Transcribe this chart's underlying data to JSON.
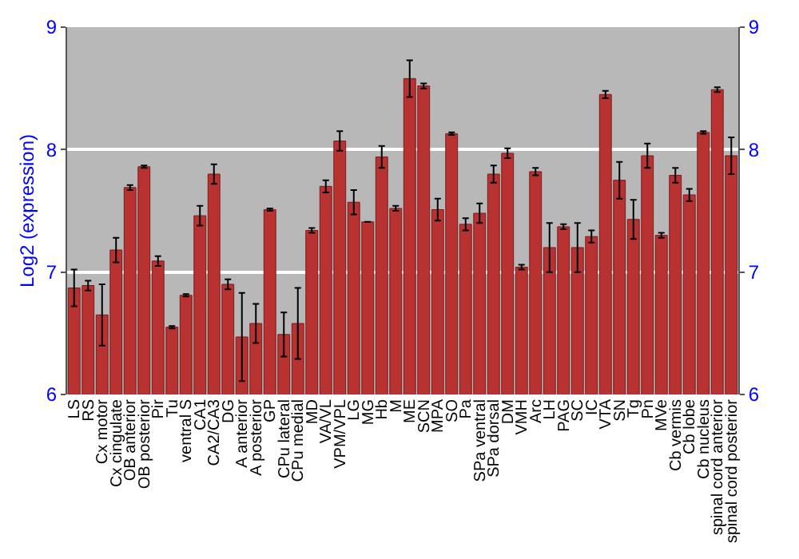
{
  "chart_data": {
    "type": "bar",
    "ylabel": "Log2 (expression)",
    "categories": [
      "LS",
      "RS",
      "Cx motor",
      "Cx cingulate",
      "OB anterior",
      "OB posterior",
      "Pir",
      "Tu",
      "ventral S",
      "CA1",
      "CA2/CA3",
      "DG",
      "A anterior",
      "A posterior",
      "GP",
      "CPu lateral",
      "CPu medial",
      "MD",
      "VA/VL",
      "VPM/VPL",
      "LG",
      "MG",
      "Hb",
      "M",
      "ME",
      "SCN",
      "MPA",
      "SO",
      "Pa",
      "SPa ventral",
      "SPa dorsal",
      "DM",
      "VMH",
      "Arc",
      "LH",
      "PAG",
      "SC",
      "IC",
      "VTA",
      "SN",
      "Tg",
      "Pn",
      "MVe",
      "Cb vermis",
      "Cb lobe",
      "Cb nucleus",
      "spinal cord anterior",
      "spinal cord posterior"
    ],
    "series": [
      {
        "color": "#b83232",
        "values": [
          6.87,
          6.89,
          6.65,
          7.18,
          7.69,
          7.86,
          7.09,
          6.55,
          6.81,
          7.46,
          7.8,
          6.9,
          6.47,
          6.58,
          7.51,
          6.49,
          6.58,
          7.34,
          7.7,
          8.07,
          7.57,
          7.41,
          7.94,
          7.52,
          8.58,
          8.52,
          7.51,
          8.13,
          7.39,
          7.48,
          7.8,
          7.97,
          7.04,
          7.82,
          7.2,
          7.37,
          7.2,
          7.29,
          8.45,
          7.75,
          7.43,
          7.95,
          7.3,
          7.79,
          7.63,
          8.14,
          8.49,
          7.95
        ],
        "errors": [
          0.15,
          0.04,
          0.25,
          0.1,
          0.02,
          0.01,
          0.04,
          0.01,
          0.01,
          0.08,
          0.08,
          0.04,
          0.36,
          0.16,
          0.01,
          0.18,
          0.29,
          0.02,
          0.05,
          0.08,
          0.1,
          null,
          0.09,
          0.02,
          0.15,
          0.02,
          0.09,
          0.01,
          0.05,
          0.08,
          0.07,
          0.04,
          0.02,
          0.03,
          0.2,
          0.02,
          0.2,
          0.05,
          0.03,
          0.15,
          0.16,
          0.1,
          0.02,
          0.06,
          0.05,
          0.01,
          0.02,
          0.15
        ]
      }
    ],
    "ylim": [
      6,
      9
    ],
    "yticks": [
      6,
      7,
      8,
      9
    ],
    "y2lim": [
      6,
      9
    ],
    "y2ticks": [
      6,
      7,
      8,
      9
    ],
    "grid": "y"
  }
}
